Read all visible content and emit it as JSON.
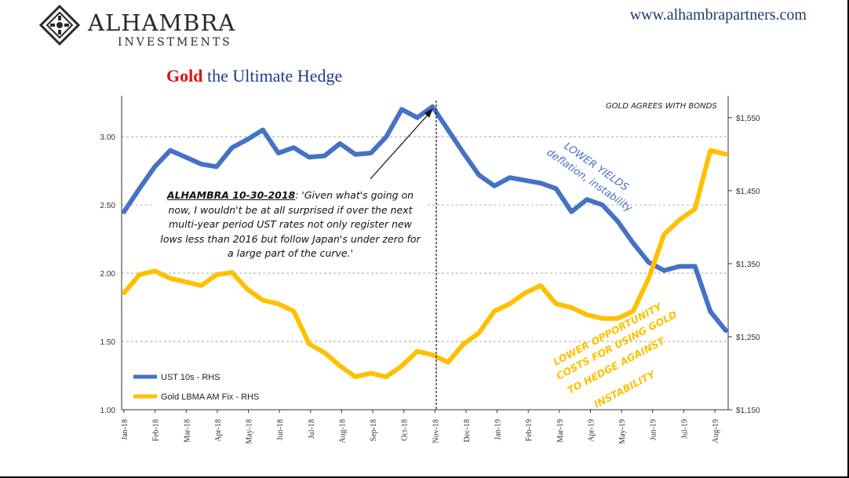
{
  "brand": {
    "name": "ALHAMBRA",
    "sub": "INVESTMENTS",
    "url": "www.alhambrapartners.com"
  },
  "title": {
    "gold": "Gold",
    "rest": " the Ultimate Hedge"
  },
  "colors": {
    "ust": "#4472c4",
    "gold": "#ffc000",
    "title_red": "#e01010",
    "title_blue": "#1f3b8c"
  },
  "annotation": {
    "source": "ALHAMBRA 10-30-2018",
    "text": ": 'Given what's going on now, I wouldn't be at all surprised if over the next multi-year period UST rates not only register new lows less than 2016 but follow Japan's under zero for a large part of the curve.'"
  },
  "notes": {
    "bonds": "GOLD AGREES WITH BONDS",
    "yields_line1": "LOWER YIELDS",
    "yields_line2": "deflation, instability",
    "opp_line1": "LOWER OPPORTUNITY",
    "opp_line2": "COSTS FOR USING GOLD",
    "opp_line3": "TO HEDGE AGAINST",
    "opp_line4": "INSTABILITY"
  },
  "chart_data": {
    "type": "line",
    "title": "Gold the Ultimate Hedge",
    "x_ticks": [
      "Jan-18",
      "Feb-18",
      "Mar-18",
      "Apr-18",
      "May-18",
      "Jun-18",
      "Jul-18",
      "Aug-18",
      "Sep-18",
      "Oct-18",
      "Nov-18",
      "Dec-18",
      "Jan-19",
      "Feb-19",
      "Mar-19",
      "Apr-19",
      "May-19",
      "Jun-19",
      "Jul-19",
      "Aug-19"
    ],
    "y_left": {
      "ticks": [
        "1.00",
        "1.50",
        "2.00",
        "2.50",
        "3.00"
      ],
      "range": [
        1.0,
        3.3
      ]
    },
    "y_right": {
      "ticks": [
        "$1,150",
        "$1,250",
        "$1,350",
        "$1,450",
        "$1,550"
      ],
      "range": [
        1150,
        1580
      ]
    },
    "marker_date": "Oct-30-18",
    "series": [
      {
        "name": "UST 10s - RHS",
        "axis": "left",
        "x": [
          "Jan-18",
          "Jan-18b",
          "Feb-18",
          "Feb-18b",
          "Mar-18",
          "Mar-18b",
          "Apr-18",
          "Apr-18b",
          "May-18",
          "May-18b",
          "Jun-18",
          "Jun-18b",
          "Jul-18",
          "Jul-18b",
          "Aug-18",
          "Aug-18b",
          "Sep-18",
          "Sep-18b",
          "Oct-18",
          "Oct-18b",
          "Nov-18",
          "Nov-18b",
          "Dec-18",
          "Dec-18b",
          "Jan-19",
          "Jan-19b",
          "Feb-19",
          "Feb-19b",
          "Mar-19",
          "Mar-19b",
          "Apr-19",
          "Apr-19b",
          "May-19",
          "May-19b",
          "Jun-19",
          "Jun-19b",
          "Jul-19",
          "Jul-19b",
          "Aug-19",
          "Aug-19b"
        ],
        "values": [
          2.45,
          2.62,
          2.78,
          2.9,
          2.85,
          2.8,
          2.78,
          2.92,
          2.98,
          3.05,
          2.88,
          2.92,
          2.85,
          2.86,
          2.95,
          2.87,
          2.88,
          3.0,
          3.2,
          3.14,
          3.22,
          3.05,
          2.88,
          2.72,
          2.64,
          2.7,
          2.68,
          2.66,
          2.62,
          2.45,
          2.54,
          2.5,
          2.38,
          2.22,
          2.08,
          2.02,
          2.05,
          2.05,
          1.72,
          1.58
        ]
      },
      {
        "name": "Gold LBMA AM Fix - RHS",
        "axis": "right",
        "x": [
          "Jan-18",
          "Jan-18b",
          "Feb-18",
          "Feb-18b",
          "Mar-18",
          "Mar-18b",
          "Apr-18",
          "Apr-18b",
          "May-18",
          "May-18b",
          "Jun-18",
          "Jun-18b",
          "Jul-18",
          "Jul-18b",
          "Aug-18",
          "Aug-18b",
          "Sep-18",
          "Sep-18b",
          "Oct-18",
          "Oct-18b",
          "Nov-18",
          "Nov-18b",
          "Dec-18",
          "Dec-18b",
          "Jan-19",
          "Jan-19b",
          "Feb-19",
          "Feb-19b",
          "Mar-19",
          "Mar-19b",
          "Apr-19",
          "Apr-19b",
          "May-19",
          "May-19b",
          "Jun-19",
          "Jun-19b",
          "Jul-19",
          "Jul-19b",
          "Aug-19",
          "Aug-19b"
        ],
        "values": [
          1310,
          1335,
          1340,
          1330,
          1325,
          1320,
          1335,
          1338,
          1315,
          1300,
          1295,
          1285,
          1240,
          1228,
          1210,
          1195,
          1200,
          1195,
          1210,
          1230,
          1225,
          1215,
          1240,
          1255,
          1285,
          1295,
          1310,
          1320,
          1295,
          1290,
          1280,
          1275,
          1275,
          1285,
          1330,
          1390,
          1410,
          1425,
          1505,
          1500
        ]
      }
    ],
    "legend": [
      "UST 10s - RHS",
      "Gold LBMA AM Fix - RHS"
    ]
  }
}
